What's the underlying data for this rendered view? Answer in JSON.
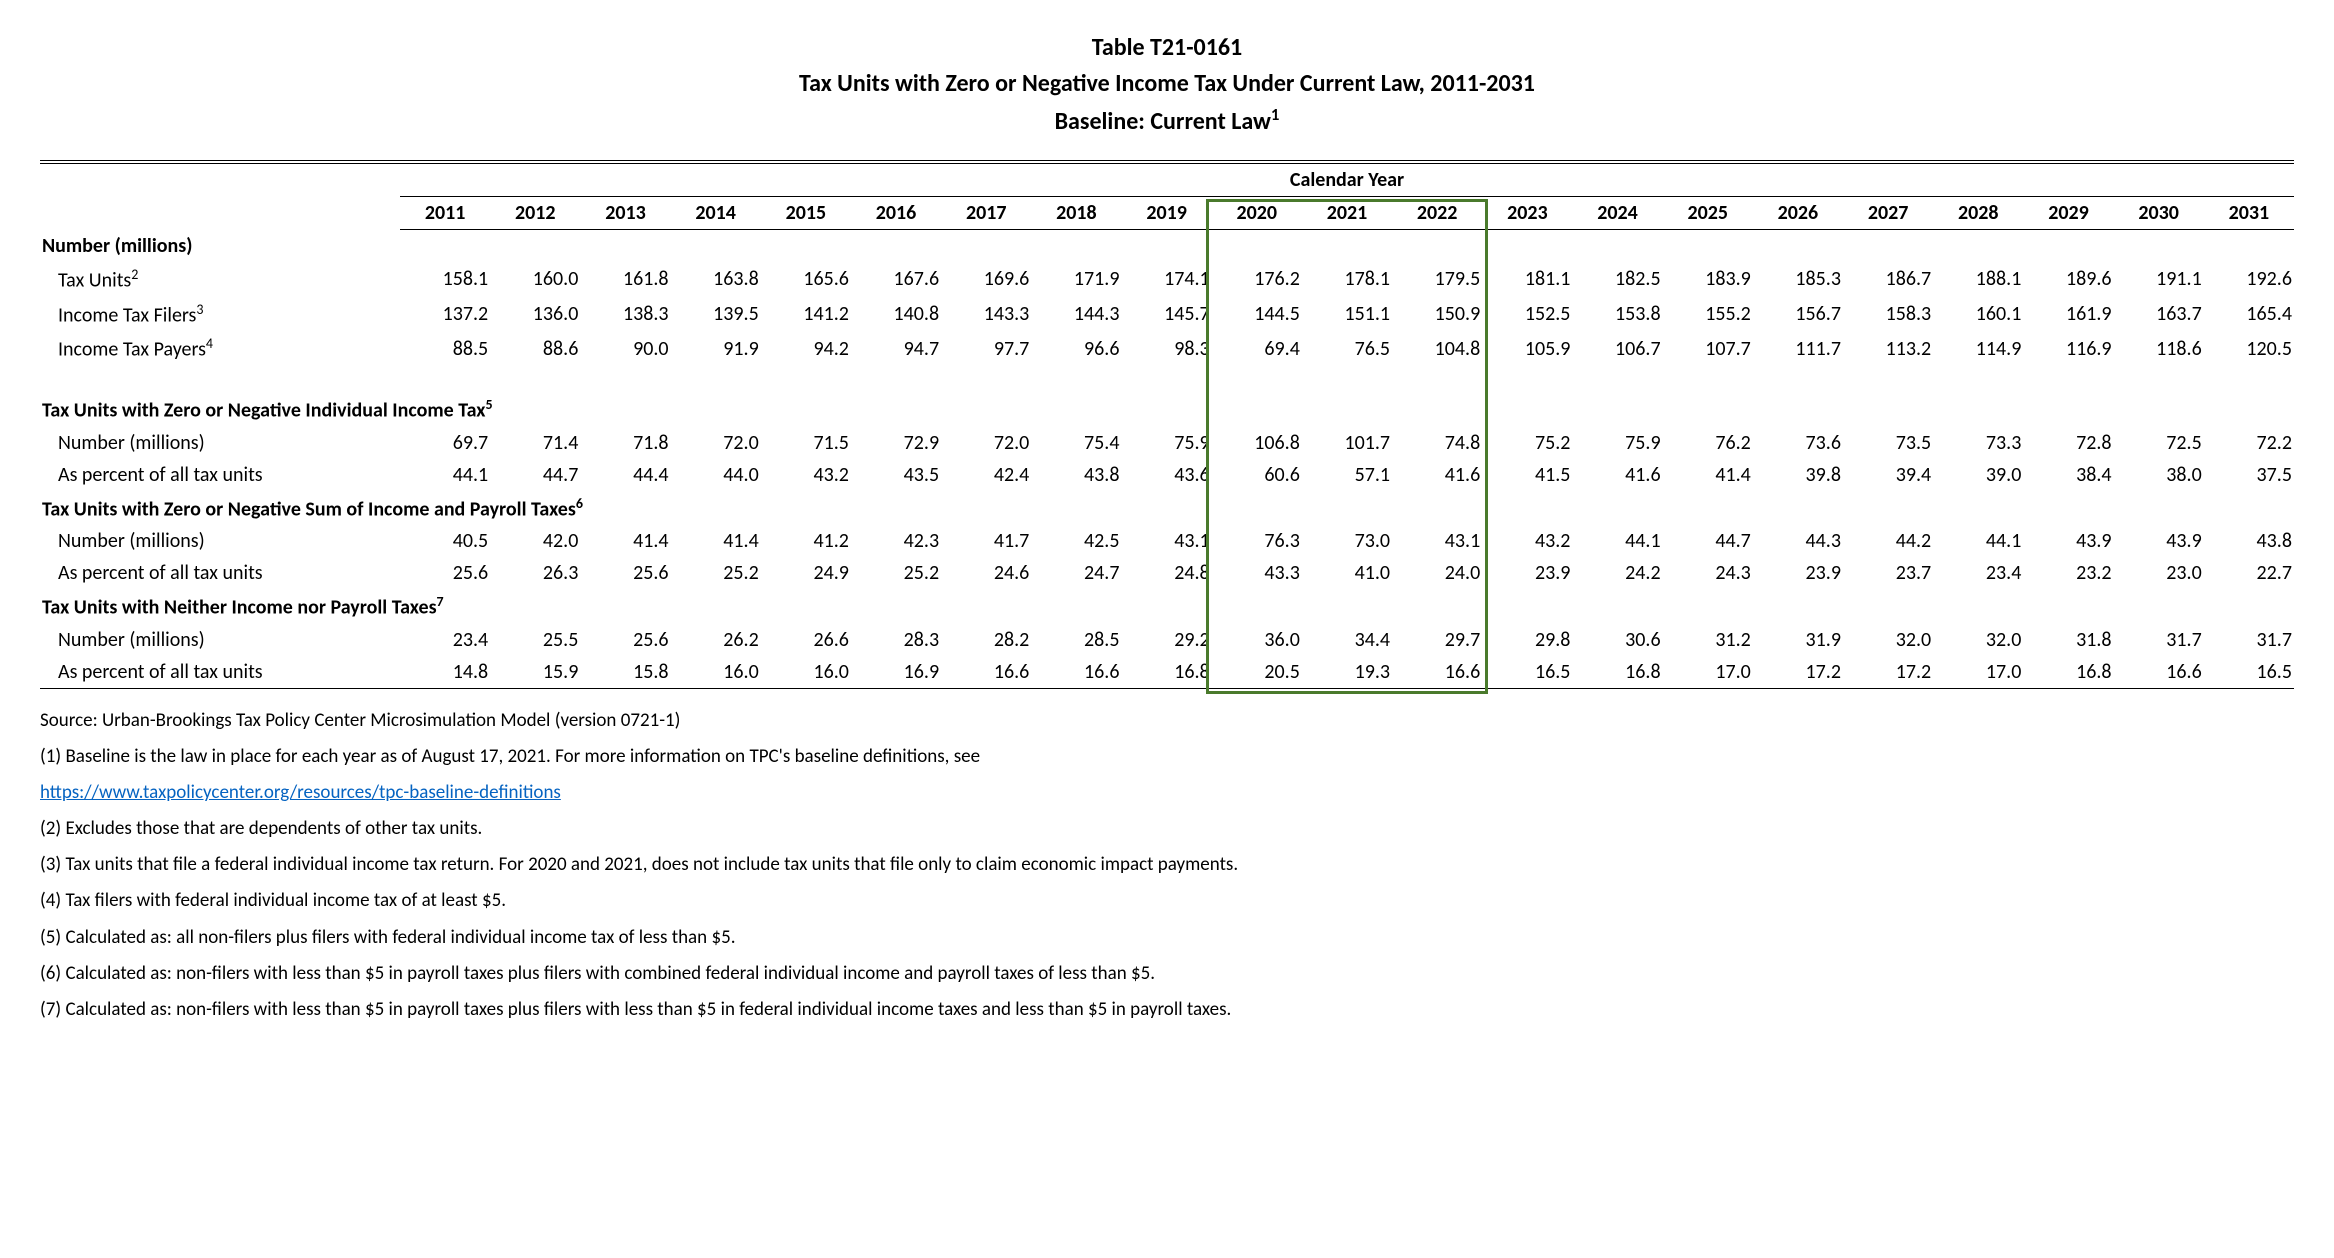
{
  "title": {
    "table_id": "Table T21-0161",
    "main": "Tax Units with Zero or Negative Income Tax Under Current Law, 2011-2031",
    "baseline": "Baseline: Current Law",
    "baseline_sup": "1"
  },
  "calendar_year_label": "Calendar Year",
  "years": [
    "2011",
    "2012",
    "2013",
    "2014",
    "2015",
    "2016",
    "2017",
    "2018",
    "2019",
    "2020",
    "2021",
    "2022",
    "2023",
    "2024",
    "2025",
    "2026",
    "2027",
    "2028",
    "2029",
    "2030",
    "2031"
  ],
  "highlight": {
    "start_year_index": 9,
    "end_year_index": 11,
    "color": "#4a7a2c"
  },
  "sections": [
    {
      "header": "Number (millions)",
      "rows": [
        {
          "label": "Tax Units",
          "sup": "2",
          "values": [
            "158.1",
            "160.0",
            "161.8",
            "163.8",
            "165.6",
            "167.6",
            "169.6",
            "171.9",
            "174.1",
            "176.2",
            "178.1",
            "179.5",
            "181.1",
            "182.5",
            "183.9",
            "185.3",
            "186.7",
            "188.1",
            "189.6",
            "191.1",
            "192.6"
          ]
        },
        {
          "label": "Income Tax Filers",
          "sup": "3",
          "values": [
            "137.2",
            "136.0",
            "138.3",
            "139.5",
            "141.2",
            "140.8",
            "143.3",
            "144.3",
            "145.7",
            "144.5",
            "151.1",
            "150.9",
            "152.5",
            "153.8",
            "155.2",
            "156.7",
            "158.3",
            "160.1",
            "161.9",
            "163.7",
            "165.4"
          ]
        },
        {
          "label": "Income Tax Payers",
          "sup": "4",
          "values": [
            "88.5",
            "88.6",
            "90.0",
            "91.9",
            "94.2",
            "94.7",
            "97.7",
            "96.6",
            "98.3",
            "69.4",
            "76.5",
            "104.8",
            "105.9",
            "106.7",
            "107.7",
            "111.7",
            "113.2",
            "114.9",
            "116.9",
            "118.6",
            "120.5"
          ]
        }
      ],
      "indent": true
    },
    {
      "header": "Tax Units with Zero or Negative Individual Income Tax",
      "header_sup": "5",
      "rows": [
        {
          "label": "Number (millions)",
          "values": [
            "69.7",
            "71.4",
            "71.8",
            "72.0",
            "71.5",
            "72.9",
            "72.0",
            "75.4",
            "75.9",
            "106.8",
            "101.7",
            "74.8",
            "75.2",
            "75.9",
            "76.2",
            "73.6",
            "73.5",
            "73.3",
            "72.8",
            "72.5",
            "72.2"
          ]
        },
        {
          "label": "As percent of all tax units",
          "values": [
            "44.1",
            "44.7",
            "44.4",
            "44.0",
            "43.2",
            "43.5",
            "42.4",
            "43.8",
            "43.6",
            "60.6",
            "57.1",
            "41.6",
            "41.5",
            "41.6",
            "41.4",
            "39.8",
            "39.4",
            "39.0",
            "38.4",
            "38.0",
            "37.5"
          ]
        }
      ],
      "indent": true
    },
    {
      "header": "Tax Units with Zero or Negative Sum of Income and Payroll Taxes",
      "header_sup": "6",
      "rows": [
        {
          "label": "Number (millions)",
          "values": [
            "40.5",
            "42.0",
            "41.4",
            "41.4",
            "41.2",
            "42.3",
            "41.7",
            "42.5",
            "43.1",
            "76.3",
            "73.0",
            "43.1",
            "43.2",
            "44.1",
            "44.7",
            "44.3",
            "44.2",
            "44.1",
            "43.9",
            "43.9",
            "43.8"
          ]
        },
        {
          "label": "As percent of all tax units",
          "values": [
            "25.6",
            "26.3",
            "25.6",
            "25.2",
            "24.9",
            "25.2",
            "24.6",
            "24.7",
            "24.8",
            "43.3",
            "41.0",
            "24.0",
            "23.9",
            "24.2",
            "24.3",
            "23.9",
            "23.7",
            "23.4",
            "23.2",
            "23.0",
            "22.7"
          ]
        }
      ],
      "indent": true
    },
    {
      "header": "Tax Units with Neither Income nor Payroll Taxes",
      "header_sup": "7",
      "rows": [
        {
          "label": "Number (millions)",
          "values": [
            "23.4",
            "25.5",
            "25.6",
            "26.2",
            "26.6",
            "28.3",
            "28.2",
            "28.5",
            "29.2",
            "36.0",
            "34.4",
            "29.7",
            "29.8",
            "30.6",
            "31.2",
            "31.9",
            "32.0",
            "32.0",
            "31.8",
            "31.7",
            "31.7"
          ]
        },
        {
          "label": "As percent of all tax units",
          "values": [
            "14.8",
            "15.9",
            "15.8",
            "16.0",
            "16.0",
            "16.9",
            "16.6",
            "16.6",
            "16.8",
            "20.5",
            "19.3",
            "16.6",
            "16.5",
            "16.8",
            "17.0",
            "17.2",
            "17.2",
            "17.0",
            "16.8",
            "16.6",
            "16.5"
          ]
        }
      ],
      "indent": true
    }
  ],
  "footnotes": {
    "source": "Source: Urban-Brookings Tax Policy Center Microsimulation Model (version 0721-1)",
    "note1_pre": "(1) Baseline is the law in place for each year as of August 17, 2021. For more information on TPC's baseline definitions, see",
    "note1_link": "https://www.taxpolicycenter.org/resources/tpc-baseline-definitions",
    "note2": "(2) Excludes those that are dependents of other tax units.",
    "note3": "(3) Tax units that file a federal individual income tax return. For 2020 and 2021, does not include tax units that file only to claim economic impact payments.",
    "note4": "(4) Tax filers with federal individual income tax of at least $5.",
    "note5": "(5) Calculated as: all non-filers plus filers with federal individual income tax of less than $5.",
    "note6": "(6) Calculated as: non-filers with less than $5 in payroll taxes plus filers with combined federal individual income and payroll taxes of less than $5.",
    "note7": "(7) Calculated as: non-filers with less than $5 in payroll taxes plus filers with less than $5 in federal individual income taxes and less than $5 in payroll taxes."
  }
}
